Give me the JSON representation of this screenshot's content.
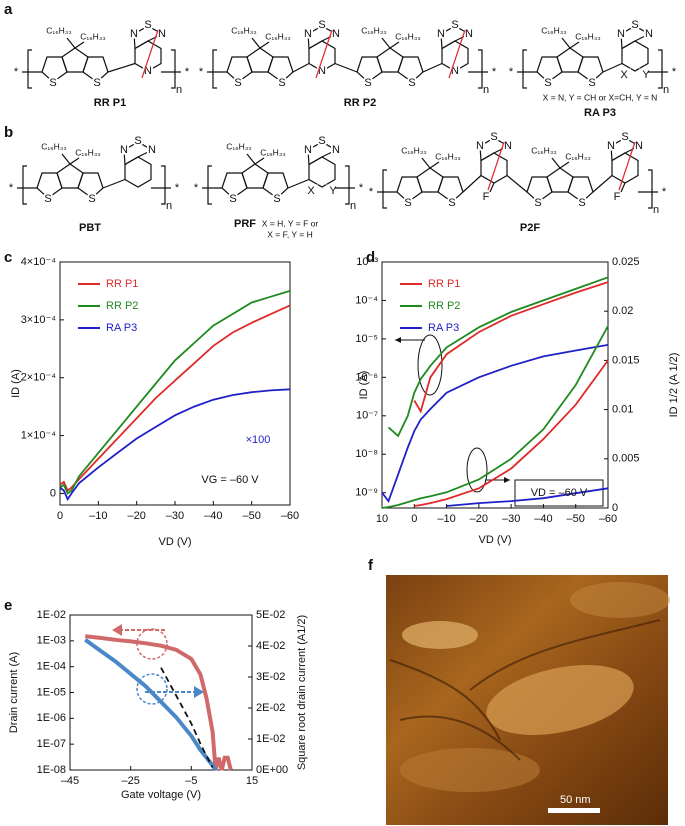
{
  "panels": {
    "a": {
      "label": "a",
      "names": [
        "RR P1",
        "RR P2",
        "RA P3"
      ],
      "note": "X = N, Y = CH or X=CH, Y = N"
    },
    "b": {
      "label": "b",
      "names": [
        "PBT",
        "PRF",
        "P2F"
      ],
      "note": [
        "X = H, Y = F or",
        "X = F, Y = H"
      ]
    },
    "f": {
      "label": "f",
      "scale_bar": "50 nm"
    }
  },
  "atoms": {
    "s": "S",
    "n": "N",
    "f": "F",
    "x": "X",
    "y": "Y",
    "star": "*",
    "repeat": "n",
    "substituent": "C₁₆H₃₃"
  },
  "chart_data": [
    {
      "type": "line",
      "panel_label": "c",
      "xlabel": "VD (V)",
      "ylabel": "ID (A)",
      "x": [
        0,
        -1,
        -2,
        -3,
        -5,
        -10,
        -15,
        -20,
        -25,
        -30,
        -35,
        -40,
        -45,
        -50,
        -55,
        -60
      ],
      "series": [
        {
          "name": "RR P1",
          "color": "#e02a2a",
          "values": [
            1.5e-05,
            2e-05,
            5e-06,
            1e-05,
            2.5e-05,
            6e-05,
            9.5e-05,
            0.00013,
            0.000165,
            0.000195,
            0.000225,
            0.000255,
            0.000278,
            0.000295,
            0.00031,
            0.000325
          ]
        },
        {
          "name": "RR P2",
          "color": "#1e8a1e",
          "values": [
            1e-05,
            1.5e-05,
            0,
            5e-06,
            3e-05,
            7e-05,
            0.00011,
            0.00015,
            0.00019,
            0.00023,
            0.00026,
            0.00029,
            0.00031,
            0.00033,
            0.00034,
            0.00035
          ]
        },
        {
          "name": "RA P3",
          "color": "#2020c8",
          "values": [
            1e-05,
            5e-06,
            -1e-05,
            0,
            1.8e-05,
            4.5e-05,
            7e-05,
            9.5e-05,
            0.000115,
            0.000135,
            0.00015,
            0.000162,
            0.00017,
            0.000175,
            0.000178,
            0.00018
          ]
        }
      ],
      "xlim": [
        0,
        -60
      ],
      "xticks": [
        0,
        {
          "value": -10,
          "label": "–10"
        },
        {
          "value": -20,
          "label": "–20"
        },
        {
          "value": -30,
          "label": "–30"
        },
        {
          "value": -40,
          "label": "–40"
        },
        {
          "value": -50,
          "label": "–50"
        },
        {
          "value": -60,
          "label": "–60"
        }
      ],
      "ylim": [
        -2e-05,
        0.0004
      ],
      "yticks": [
        0,
        {
          "value": 0.0001,
          "label": "1×10⁻⁴"
        },
        {
          "value": 0.0002,
          "label": "2×10⁻⁴"
        },
        {
          "value": 0.0003,
          "label": "3×10⁻⁴"
        },
        {
          "value": 0.0004,
          "label": "4×10⁻⁴"
        }
      ],
      "legend": "upper left",
      "annotations": [
        "×100",
        "VG = –60 V"
      ]
    },
    {
      "type": "line",
      "panel_label": "d",
      "xlabel": "VD (V)",
      "ylabel": "ID (A)",
      "y2label": "ID 1/2 (A 1/2)",
      "x": [
        10,
        8,
        5,
        2,
        0,
        -2,
        -5,
        -10,
        -20,
        -30,
        -40,
        -50,
        -60
      ],
      "series": [
        {
          "name": "RR P1",
          "color": "#e02a2a",
          "values": [
            null,
            null,
            null,
            null,
            2.5e-07,
            1.3e-07,
            1e-06,
            4e-06,
            1.5e-05,
            4e-05,
            8e-05,
            0.00016,
            0.0003
          ]
        },
        {
          "name": "RR P2",
          "color": "#1e8a1e",
          "values": [
            null,
            5e-08,
            3e-08,
            1e-07,
            4e-07,
            9e-07,
            2e-06,
            6e-06,
            2e-05,
            5e-05,
            0.0001,
            0.0002,
            0.0004
          ]
        },
        {
          "name": "RA P3",
          "color": "#2020c8",
          "values": [
            1e-09,
            6e-10,
            3e-09,
            1.5e-08,
            4e-08,
            8e-08,
            1.5e-07,
            4e-07,
            1e-06,
            2e-06,
            3.5e-06,
            5e-06,
            7e-06
          ]
        },
        {
          "color": "#e02a2a",
          "axis": "y2",
          "values": [
            null,
            null,
            null,
            null,
            0.0002,
            0.0003,
            0.0005,
            0.0009,
            0.002,
            0.004,
            0.007,
            0.0105,
            0.015
          ]
        },
        {
          "color": "#1e8a1e",
          "axis": "y2",
          "values": [
            0,
            0.0001,
            0.0003,
            0.0006,
            0.0008,
            0.001,
            0.0012,
            0.0016,
            0.0029,
            0.005,
            0.008,
            0.0125,
            0.0185
          ]
        },
        {
          "color": "#2020c8",
          "axis": "y2",
          "values": [
            null,
            null,
            null,
            null,
            null,
            null,
            null,
            0.0002,
            0.0005,
            0.0007,
            0.001,
            0.0015,
            0.002
          ]
        }
      ],
      "xlim": [
        10,
        -60
      ],
      "xticks": [
        10,
        0,
        {
          "value": -10,
          "label": "–10"
        },
        {
          "value": -20,
          "label": "–20"
        },
        {
          "value": -30,
          "label": "–30"
        },
        {
          "value": -40,
          "label": "–40"
        },
        {
          "value": -50,
          "label": "–50"
        },
        {
          "value": -60,
          "label": "–60"
        }
      ],
      "ylog": true,
      "ylim": [
        4e-10,
        0.001
      ],
      "yticks": [
        {
          "value": 1e-09,
          "label": "10⁻⁹"
        },
        {
          "value": 1e-08,
          "label": "10⁻⁸"
        },
        {
          "value": 1e-07,
          "label": "10⁻⁷"
        },
        {
          "value": 1e-06,
          "label": "10⁻⁶"
        },
        {
          "value": 1e-05,
          "label": "10⁻⁵"
        },
        {
          "value": 0.0001,
          "label": "10⁻⁴"
        },
        {
          "value": 0.001,
          "label": "10⁻³"
        }
      ],
      "y2lim": [
        0,
        0.025
      ],
      "y2ticks": [
        0,
        0.005,
        0.01,
        0.015,
        0.02,
        0.025
      ],
      "legend": "upper left",
      "annotations": [
        "VD = –60 V"
      ]
    },
    {
      "type": "line",
      "panel_label": "e",
      "xlabel": "Gate voltage (V)",
      "ylabel": "Drain current (A)",
      "y2label": "Square root drain current (A1/2)",
      "x": [
        -40,
        -35,
        -30,
        -25,
        -20,
        -15,
        -10,
        -5,
        -2,
        0,
        2,
        3,
        4,
        5,
        6,
        7,
        8
      ],
      "series": [
        {
          "color": "#d06a6a",
          "values": [
            0.0015,
            0.0013,
            0.0011,
            0.00095,
            0.0008,
            0.00065,
            0.00045,
            0.0002,
            5e-05,
            6e-06,
            3e-07,
            1e-08,
            3e-08,
            1e-08,
            3e-08,
            3e-08,
            1e-08
          ]
        },
        {
          "color": "#4a88c8",
          "axis": "y2",
          "values": [
            0.042,
            0.0385,
            0.035,
            0.031,
            0.027,
            0.022,
            0.017,
            0.011,
            0.0065,
            0.004,
            0.0015,
            0,
            null,
            null,
            null,
            null,
            null
          ]
        },
        {
          "color": "#111111",
          "axis": "y2",
          "dash": true,
          "values": [
            null,
            null,
            null,
            null,
            null,
            0.033,
            0.024,
            0.015,
            0.0085,
            0.0045,
            0.0008,
            null,
            null,
            null,
            null,
            null,
            null
          ]
        }
      ],
      "xlim": [
        -45,
        15
      ],
      "xticks": [
        {
          "value": -45,
          "label": "–45"
        },
        {
          "value": -25,
          "label": "–25"
        },
        {
          "value": -5,
          "label": "–5"
        },
        15
      ],
      "ylog": true,
      "ylim": [
        1e-08,
        0.01
      ],
      "yticks": [
        {
          "value": 1e-08,
          "label": "1E-08"
        },
        {
          "value": 1e-07,
          "label": "1E-07"
        },
        {
          "value": 1e-06,
          "label": "1E-06"
        },
        {
          "value": 1e-05,
          "label": "1E-05"
        },
        {
          "value": 0.0001,
          "label": "1E-04"
        },
        {
          "value": 0.001,
          "label": "1E-03"
        },
        {
          "value": 0.01,
          "label": "1E-02"
        }
      ],
      "y2lim": [
        0,
        0.05
      ],
      "y2ticks": [
        {
          "value": 0,
          "label": "0E+00"
        },
        {
          "value": 0.01,
          "label": "1E-02"
        },
        {
          "value": 0.02,
          "label": "2E-02"
        },
        {
          "value": 0.03,
          "label": "3E-02"
        },
        {
          "value": 0.04,
          "label": "4E-02"
        },
        {
          "value": 0.05,
          "label": "5E-02"
        }
      ]
    }
  ]
}
